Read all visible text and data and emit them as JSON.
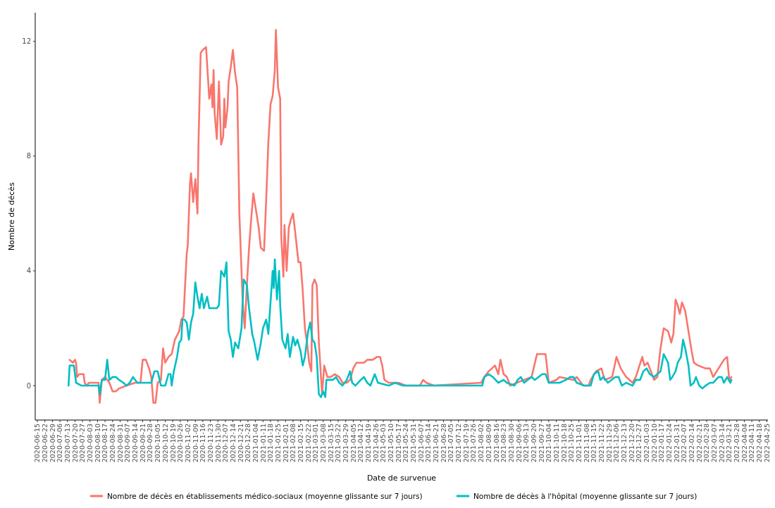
{
  "chart_data": {
    "type": "line",
    "xlabel": "Date de survenue",
    "ylabel": "Nombre de décès",
    "xlim": [
      "2020-06-13",
      "2022-04-26"
    ],
    "ylim": [
      -1.2,
      13
    ],
    "yticks": [
      0,
      4,
      8,
      12
    ],
    "xticks": [
      "2020-06-15",
      "2020-06-22",
      "2020-06-29",
      "2020-07-06",
      "2020-07-13",
      "2020-07-20",
      "2020-07-27",
      "2020-08-03",
      "2020-08-10",
      "2020-08-17",
      "2020-08-24",
      "2020-08-31",
      "2020-09-07",
      "2020-09-14",
      "2020-09-21",
      "2020-09-28",
      "2020-10-05",
      "2020-10-12",
      "2020-10-19",
      "2020-10-26",
      "2020-11-02",
      "2020-11-09",
      "2020-11-16",
      "2020-11-23",
      "2020-11-30",
      "2020-12-07",
      "2020-12-14",
      "2020-12-21",
      "2020-12-28",
      "2021-01-04",
      "2021-01-11",
      "2021-01-18",
      "2021-01-25",
      "2021-02-01",
      "2021-02-08",
      "2021-02-15",
      "2021-02-22",
      "2021-03-01",
      "2021-03-08",
      "2021-03-15",
      "2021-03-22",
      "2021-03-29",
      "2021-04-05",
      "2021-04-12",
      "2021-04-19",
      "2021-04-26",
      "2021-05-03",
      "2021-05-10",
      "2021-05-17",
      "2021-05-24",
      "2021-05-31",
      "2021-06-07",
      "2021-06-14",
      "2021-06-21",
      "2021-06-28",
      "2021-07-05",
      "2021-07-12",
      "2021-07-19",
      "2021-07-26",
      "2021-08-02",
      "2021-08-09",
      "2021-08-16",
      "2021-08-23",
      "2021-08-30",
      "2021-09-06",
      "2021-09-13",
      "2021-09-20",
      "2021-09-27",
      "2021-10-04",
      "2021-10-11",
      "2021-10-18",
      "2021-10-25",
      "2021-11-01",
      "2021-11-08",
      "2021-11-15",
      "2021-11-22",
      "2021-11-29",
      "2021-12-06",
      "2021-12-13",
      "2021-12-20",
      "2021-12-27",
      "2022-01-03",
      "2022-01-10",
      "2022-01-17",
      "2022-01-24",
      "2022-01-31",
      "2022-02-07",
      "2022-02-14",
      "2022-02-21",
      "2022-02-28",
      "2022-03-07",
      "2022-03-14",
      "2022-03-21",
      "2022-03-28",
      "2022-04-04",
      "2022-04-11",
      "2022-04-18",
      "2022-04-25"
    ],
    "grid": false,
    "legend": "bottom",
    "line_style": "solid",
    "marker": "none",
    "series": [
      {
        "name": "Nombre de décès en établissements médico-sociaux (moyenne glissante sur 7 jours)",
        "color": "#f8766d",
        "x": [
          "2020-07-15",
          "2020-07-18",
          "2020-07-20",
          "2020-07-21",
          "2020-07-22",
          "2020-07-24",
          "2020-07-28",
          "2020-07-29",
          "2020-07-31",
          "2020-08-02",
          "2020-08-08",
          "2020-08-11",
          "2020-08-12",
          "2020-08-14",
          "2020-08-17",
          "2020-08-21",
          "2020-08-24",
          "2020-08-27",
          "2020-08-30",
          "2020-09-06",
          "2020-09-14",
          "2020-09-19",
          "2020-09-21",
          "2020-09-24",
          "2020-09-27",
          "2020-09-29",
          "2020-10-01",
          "2020-10-03",
          "2020-10-05",
          "2020-10-08",
          "2020-10-10",
          "2020-10-12",
          "2020-10-15",
          "2020-10-18",
          "2020-10-21",
          "2020-10-25",
          "2020-10-27",
          "2020-10-29",
          "2020-11-01",
          "2020-11-02",
          "2020-11-04",
          "2020-11-05",
          "2020-11-07",
          "2020-11-09",
          "2020-11-11",
          "2020-11-12",
          "2020-11-14",
          "2020-11-16",
          "2020-11-19",
          "2020-11-21",
          "2020-11-22",
          "2020-11-24",
          "2020-11-25",
          "2020-11-26",
          "2020-11-27",
          "2020-11-29",
          "2020-11-30",
          "2020-12-01",
          "2020-12-03",
          "2020-12-05",
          "2020-12-06",
          "2020-12-07",
          "2020-12-09",
          "2020-12-10",
          "2020-12-12",
          "2020-12-14",
          "2020-12-16",
          "2020-12-18",
          "2020-12-20",
          "2020-12-23",
          "2020-12-25",
          "2020-12-27",
          "2020-12-29",
          "2020-12-31",
          "2021-01-02",
          "2021-01-05",
          "2021-01-07",
          "2021-01-09",
          "2021-01-12",
          "2021-01-14",
          "2021-01-16",
          "2021-01-18",
          "2021-01-20",
          "2021-01-22",
          "2021-01-23",
          "2021-01-25",
          "2021-01-27",
          "2021-01-28",
          "2021-01-30",
          "2021-01-31",
          "2021-02-02",
          "2021-02-04",
          "2021-02-06",
          "2021-02-08",
          "2021-02-11",
          "2021-02-13",
          "2021-02-15",
          "2021-02-17",
          "2021-02-19",
          "2021-02-21",
          "2021-02-23",
          "2021-02-25",
          "2021-02-26",
          "2021-02-28",
          "2021-03-02",
          "2021-03-04",
          "2021-03-07",
          "2021-03-09",
          "2021-03-12",
          "2021-03-15",
          "2021-03-19",
          "2021-03-23",
          "2021-03-26",
          "2021-03-30",
          "2021-04-02",
          "2021-04-05",
          "2021-04-08",
          "2021-04-15",
          "2021-04-18",
          "2021-04-23",
          "2021-04-27",
          "2021-04-30",
          "2021-05-02",
          "2021-05-04",
          "2021-05-08",
          "2021-05-17",
          "2021-05-24",
          "2021-06-06",
          "2021-06-09",
          "2021-06-12",
          "2021-06-19",
          "2021-08-02",
          "2021-08-05",
          "2021-08-09",
          "2021-08-12",
          "2021-08-15",
          "2021-08-18",
          "2021-08-20",
          "2021-08-23",
          "2021-08-26",
          "2021-08-29",
          "2021-09-11",
          "2021-09-18",
          "2021-09-23",
          "2021-10-01",
          "2021-10-04",
          "2021-10-11",
          "2021-10-14",
          "2021-10-27",
          "2021-10-30",
          "2021-11-05",
          "2021-11-10",
          "2021-11-12",
          "2021-11-17",
          "2021-11-22",
          "2021-11-25",
          "2021-12-02",
          "2021-12-06",
          "2021-12-10",
          "2021-12-15",
          "2021-12-21",
          "2021-12-24",
          "2021-12-30",
          "2022-01-01",
          "2022-01-04",
          "2022-01-10",
          "2022-01-13",
          "2022-01-16",
          "2022-01-19",
          "2022-01-23",
          "2022-01-26",
          "2022-01-28",
          "2022-01-30",
          "2022-02-01",
          "2022-02-03",
          "2022-02-05",
          "2022-02-08",
          "2022-02-11",
          "2022-02-14",
          "2022-02-16",
          "2022-02-20",
          "2022-02-27",
          "2022-03-03",
          "2022-03-06",
          "2022-03-11",
          "2022-03-16",
          "2022-03-19",
          "2022-03-21",
          "2022-03-23"
        ],
        "values": [
          0.9,
          0.8,
          0.9,
          0.8,
          0.3,
          0.4,
          0.4,
          0.1,
          0.0,
          0.1,
          0.1,
          0.1,
          -0.6,
          0.2,
          0.3,
          0.1,
          -0.2,
          -0.2,
          -0.1,
          0.0,
          0.1,
          0.1,
          0.9,
          0.9,
          0.6,
          0.3,
          -0.6,
          -0.6,
          0.1,
          0.2,
          1.3,
          0.8,
          1.0,
          1.1,
          1.6,
          1.9,
          2.3,
          2.4,
          4.6,
          4.9,
          7.0,
          7.4,
          6.4,
          7.2,
          6.0,
          8.5,
          11.6,
          11.7,
          11.8,
          10.6,
          10.0,
          10.5,
          9.7,
          11.0,
          9.5,
          8.6,
          9.6,
          10.6,
          8.4,
          8.7,
          10.0,
          9.0,
          9.7,
          10.6,
          11.1,
          11.7,
          10.9,
          10.4,
          6.0,
          3.0,
          2.0,
          3.5,
          4.8,
          5.8,
          6.7,
          6.0,
          5.5,
          4.8,
          4.7,
          6.5,
          8.5,
          9.8,
          10.1,
          11.0,
          12.4,
          10.4,
          10.0,
          5.2,
          3.8,
          5.6,
          4.0,
          5.5,
          5.8,
          6.0,
          5.0,
          4.3,
          4.3,
          3.3,
          2.0,
          1.5,
          0.8,
          0.5,
          3.5,
          3.7,
          3.5,
          1.5,
          -0.3,
          0.7,
          0.3,
          0.3,
          0.4,
          0.3,
          0.1,
          0.1,
          0.2,
          0.6,
          0.8,
          0.8,
          0.9,
          0.9,
          1.0,
          1.0,
          0.7,
          0.2,
          0.1,
          0.1,
          0.0,
          0.0,
          0.2,
          0.1,
          0.0,
          0.1,
          0.3,
          0.5,
          0.6,
          0.7,
          0.4,
          0.9,
          0.4,
          0.3,
          0.0,
          0.2,
          0.3,
          1.1,
          1.1,
          0.1,
          0.2,
          0.3,
          0.2,
          0.3,
          0.0,
          0.0,
          0.2,
          0.5,
          0.6,
          0.2,
          0.3,
          1.0,
          0.6,
          0.3,
          0.1,
          0.3,
          1.0,
          0.7,
          0.8,
          0.2,
          0.3,
          1.3,
          2.0,
          1.9,
          1.5,
          1.8,
          3.0,
          2.8,
          2.5,
          2.9,
          2.6,
          1.9,
          1.2,
          0.8,
          0.7,
          0.6,
          0.6,
          0.3,
          0.6,
          0.9,
          1.0,
          0.2,
          0.3
        ]
      },
      {
        "name": "Nombre de décès à l'hôpital (moyenne glissante sur 7 jours)",
        "color": "#00bfc4",
        "x": [
          "2020-07-14",
          "2020-07-15",
          "2020-07-19",
          "2020-07-21",
          "2020-07-26",
          "2020-08-11",
          "2020-08-12",
          "2020-08-14",
          "2020-08-17",
          "2020-08-19",
          "2020-08-21",
          "2020-08-24",
          "2020-08-27",
          "2020-08-30",
          "2020-09-03",
          "2020-09-06",
          "2020-09-09",
          "2020-09-12",
          "2020-09-16",
          "2020-09-29",
          "2020-10-02",
          "2020-10-05",
          "2020-10-08",
          "2020-10-12",
          "2020-10-15",
          "2020-10-17",
          "2020-10-18",
          "2020-10-20",
          "2020-10-23",
          "2020-10-25",
          "2020-10-27",
          "2020-10-28",
          "2020-10-30",
          "2020-11-01",
          "2020-11-03",
          "2020-11-05",
          "2020-11-07",
          "2020-11-09",
          "2020-11-11",
          "2020-11-13",
          "2020-11-15",
          "2020-11-17",
          "2020-11-20",
          "2020-11-22",
          "2020-11-29",
          "2020-12-01",
          "2020-12-03",
          "2020-12-06",
          "2020-12-08",
          "2020-12-10",
          "2020-12-12",
          "2020-12-14",
          "2020-12-16",
          "2020-12-19",
          "2020-12-22",
          "2020-12-24",
          "2020-12-27",
          "2020-12-29",
          "2021-01-01",
          "2021-01-03",
          "2021-01-06",
          "2021-01-09",
          "2021-01-11",
          "2021-01-14",
          "2021-01-16",
          "2021-01-18",
          "2021-01-20",
          "2021-01-21",
          "2021-01-22",
          "2021-01-24",
          "2021-01-26",
          "2021-01-27",
          "2021-01-29",
          "2021-02-01",
          "2021-02-03",
          "2021-02-05",
          "2021-02-08",
          "2021-02-10",
          "2021-02-12",
          "2021-02-15",
          "2021-02-17",
          "2021-02-19",
          "2021-02-22",
          "2021-02-24",
          "2021-02-26",
          "2021-02-28",
          "2021-03-02",
          "2021-03-04",
          "2021-03-06",
          "2021-03-08",
          "2021-03-10",
          "2021-03-11",
          "2021-03-17",
          "2021-03-20",
          "2021-03-23",
          "2021-03-26",
          "2021-03-30",
          "2021-04-02",
          "2021-04-04",
          "2021-04-07",
          "2021-04-12",
          "2021-04-15",
          "2021-04-18",
          "2021-04-21",
          "2021-04-25",
          "2021-04-28",
          "2021-05-08",
          "2021-05-14",
          "2021-05-21",
          "2021-08-03",
          "2021-08-05",
          "2021-08-09",
          "2021-08-13",
          "2021-08-18",
          "2021-08-23",
          "2021-08-26",
          "2021-09-02",
          "2021-09-05",
          "2021-09-08",
          "2021-09-11",
          "2021-09-18",
          "2021-09-21",
          "2021-09-28",
          "2021-10-01",
          "2021-10-04",
          "2021-10-14",
          "2021-10-20",
          "2021-10-24",
          "2021-10-27",
          "2021-10-30",
          "2021-11-06",
          "2021-11-12",
          "2021-11-15",
          "2021-11-19",
          "2021-11-21",
          "2021-11-24",
          "2021-11-28",
          "2021-12-05",
          "2021-12-08",
          "2021-12-11",
          "2021-12-15",
          "2021-12-21",
          "2021-12-24",
          "2021-12-28",
          "2021-12-31",
          "2022-01-03",
          "2022-01-06",
          "2022-01-10",
          "2022-01-13",
          "2022-01-16",
          "2022-01-19",
          "2022-01-23",
          "2022-01-25",
          "2022-01-27",
          "2022-01-30",
          "2022-02-01",
          "2022-02-04",
          "2022-02-06",
          "2022-02-08",
          "2022-02-11",
          "2022-02-13",
          "2022-02-16",
          "2022-02-18",
          "2022-02-21",
          "2022-02-24",
          "2022-02-27",
          "2022-03-03",
          "2022-03-06",
          "2022-03-11",
          "2022-03-14",
          "2022-03-16",
          "2022-03-19",
          "2022-03-22",
          "2022-03-23"
        ],
        "values": [
          0.0,
          0.7,
          0.7,
          0.1,
          0.0,
          0.0,
          -0.3,
          0.2,
          0.2,
          0.9,
          0.2,
          0.3,
          0.3,
          0.2,
          0.1,
          0.0,
          0.1,
          0.3,
          0.1,
          0.1,
          0.5,
          0.5,
          0.0,
          0.0,
          0.4,
          0.4,
          0.0,
          0.5,
          1.0,
          1.5,
          1.6,
          2.3,
          2.3,
          2.2,
          1.6,
          2.2,
          2.5,
          3.6,
          3.1,
          2.7,
          3.2,
          2.7,
          3.1,
          2.7,
          2.7,
          2.8,
          4.0,
          3.8,
          4.3,
          1.9,
          1.6,
          1.0,
          1.5,
          1.3,
          2.0,
          3.7,
          3.5,
          2.7,
          1.8,
          1.5,
          0.9,
          1.5,
          2.0,
          2.3,
          1.8,
          2.9,
          4.0,
          3.4,
          4.4,
          3.0,
          4.0,
          2.8,
          1.6,
          1.3,
          1.8,
          1.0,
          1.7,
          1.4,
          1.6,
          1.2,
          0.7,
          1.0,
          1.9,
          2.2,
          1.6,
          1.5,
          1.0,
          -0.3,
          -0.4,
          -0.2,
          -0.4,
          0.2,
          0.2,
          0.3,
          0.1,
          0.0,
          0.2,
          0.5,
          0.1,
          0.0,
          0.2,
          0.3,
          0.1,
          0.0,
          0.4,
          0.1,
          0.0,
          0.1,
          0.0,
          0.0,
          0.3,
          0.4,
          0.3,
          0.1,
          0.2,
          0.1,
          0.0,
          0.2,
          0.3,
          0.1,
          0.3,
          0.2,
          0.4,
          0.4,
          0.1,
          0.1,
          0.2,
          0.3,
          0.3,
          0.1,
          0.0,
          0.0,
          0.4,
          0.5,
          0.2,
          0.3,
          0.1,
          0.3,
          0.3,
          0.0,
          0.1,
          0.0,
          0.2,
          0.2,
          0.5,
          0.6,
          0.4,
          0.3,
          0.4,
          0.5,
          1.1,
          0.8,
          0.2,
          0.3,
          0.5,
          0.8,
          1.0,
          1.6,
          1.3,
          0.7,
          0.0,
          0.1,
          0.3,
          0.0,
          -0.1,
          0.0,
          0.1,
          0.1,
          0.3,
          0.3,
          0.1,
          0.3,
          0.1,
          0.2
        ]
      }
    ]
  }
}
